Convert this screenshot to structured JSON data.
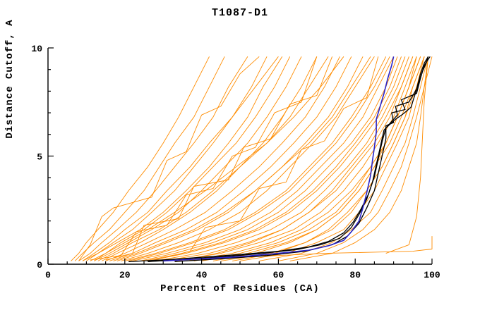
{
  "chart_data": {
    "type": "line",
    "title": "T1087-D1",
    "xlabel": "Percent of Residues (CA)",
    "ylabel": "Distance Cutoff, A",
    "xlim": [
      0,
      100
    ],
    "ylim": [
      0,
      10
    ],
    "x_major_ticks": [
      0,
      20,
      40,
      60,
      80,
      100
    ],
    "x_minor_step": 5,
    "y_major_ticks": [
      0,
      5,
      10
    ],
    "y_minor_step": 1,
    "grid": "off",
    "legend": "none",
    "colors": {
      "model_orange": "#ff8c00",
      "best_blue": "#2b24c8",
      "reference_black": "#000000"
    },
    "y_grid": [
      0.15,
      0.5,
      1.0,
      1.6,
      2.4,
      3.4,
      4.5,
      5.6,
      6.8,
      8.2,
      9.6
    ],
    "orange_curves_x": [
      [
        6,
        8,
        10,
        13,
        17,
        21,
        26,
        30,
        34,
        38,
        42
      ],
      [
        7,
        9,
        12,
        16,
        20,
        25,
        29,
        33,
        38,
        42,
        46
      ],
      [
        8,
        11,
        14,
        18,
        23,
        28,
        33,
        38,
        43,
        47,
        52
      ],
      [
        10,
        13,
        17,
        22,
        27,
        33,
        38,
        43,
        48,
        53,
        57
      ],
      [
        9,
        12,
        16,
        20,
        26,
        31,
        37,
        42,
        48,
        54,
        60
      ],
      [
        11,
        15,
        19,
        25,
        31,
        37,
        43,
        49,
        54,
        59,
        63
      ],
      [
        12,
        16,
        21,
        27,
        34,
        40,
        46,
        52,
        57,
        62,
        66
      ],
      [
        14,
        18,
        24,
        30,
        37,
        44,
        50,
        56,
        61,
        66,
        70
      ],
      [
        13,
        17,
        22,
        29,
        36,
        43,
        50,
        57,
        63,
        68,
        73
      ],
      [
        15,
        20,
        26,
        33,
        41,
        48,
        55,
        61,
        67,
        72,
        76
      ],
      [
        16,
        22,
        28,
        36,
        44,
        51,
        58,
        64,
        70,
        75,
        79
      ],
      [
        18,
        24,
        31,
        39,
        47,
        54,
        61,
        67,
        73,
        78,
        82
      ],
      [
        12,
        15,
        20,
        26,
        33,
        41,
        49,
        57,
        64,
        71,
        77
      ],
      [
        17,
        23,
        30,
        38,
        46,
        54,
        61,
        68,
        74,
        79,
        84
      ],
      [
        20,
        28,
        37,
        46,
        54,
        62,
        68,
        74,
        79,
        84,
        88
      ],
      [
        22,
        31,
        41,
        50,
        58,
        65,
        71,
        77,
        82,
        86,
        90
      ],
      [
        25,
        35,
        45,
        54,
        62,
        69,
        75,
        80,
        85,
        89,
        92
      ],
      [
        28,
        39,
        49,
        58,
        66,
        72,
        78,
        83,
        87,
        91,
        94
      ],
      [
        30,
        42,
        52,
        61,
        68,
        75,
        80,
        85,
        89,
        92,
        95
      ],
      [
        24,
        33,
        43,
        52,
        60,
        67,
        73,
        79,
        84,
        88,
        91
      ],
      [
        33,
        45,
        55,
        64,
        71,
        77,
        82,
        86,
        90,
        93,
        96
      ],
      [
        36,
        48,
        58,
        66,
        73,
        79,
        84,
        88,
        91,
        94,
        97
      ],
      [
        40,
        52,
        62,
        70,
        76,
        81,
        85,
        88,
        91,
        94,
        97
      ],
      [
        45,
        58,
        67,
        74,
        79,
        83,
        87,
        90,
        93,
        95,
        98
      ],
      [
        50,
        62,
        70,
        77,
        81,
        85,
        88,
        91,
        94,
        96,
        99
      ],
      [
        55,
        66,
        74,
        79,
        84,
        87,
        90,
        93,
        95,
        97,
        99
      ],
      [
        38,
        50,
        60,
        68,
        75,
        80,
        84,
        88,
        91,
        94,
        96
      ],
      [
        60,
        70,
        77,
        82,
        86,
        89,
        92,
        94,
        96,
        98,
        100
      ],
      [
        63,
        74,
        80,
        85,
        89,
        92,
        94,
        96,
        97,
        98,
        99
      ],
      [
        19,
        26,
        34,
        42,
        50,
        57,
        63,
        69,
        75,
        80,
        85
      ],
      [
        21,
        29,
        38,
        47,
        55,
        63,
        69,
        75,
        80,
        85,
        89
      ],
      [
        26,
        36,
        46,
        55,
        63,
        70,
        76,
        81,
        86,
        90,
        93
      ],
      [
        9,
        13,
        18,
        24,
        30,
        36,
        42,
        47,
        52,
        56,
        61
      ],
      [
        34,
        44,
        53,
        61,
        68,
        74,
        79,
        84,
        88,
        92,
        95
      ],
      [
        43,
        54,
        63,
        70,
        76,
        81,
        85,
        89,
        92,
        95,
        98
      ],
      [
        48,
        59,
        67,
        73,
        78,
        83,
        87,
        90,
        93,
        96,
        98
      ]
    ],
    "orange_curves_points": [
      [
        [
          8,
          0.15
        ],
        [
          11,
          0.9
        ],
        [
          14,
          2.2
        ],
        [
          17,
          2.6
        ],
        [
          27,
          3.1
        ],
        [
          31,
          4.8
        ],
        [
          36,
          5.2
        ],
        [
          40,
          6.9
        ],
        [
          45,
          7.3
        ],
        [
          50,
          8.8
        ],
        [
          55,
          9.6
        ]
      ],
      [
        [
          15,
          0.2
        ],
        [
          22,
          0.5
        ],
        [
          25,
          1.8
        ],
        [
          34,
          2.1
        ],
        [
          38,
          3.6
        ],
        [
          47,
          3.9
        ],
        [
          51,
          5.4
        ],
        [
          58,
          5.8
        ],
        [
          63,
          7.4
        ],
        [
          70,
          7.8
        ],
        [
          74,
          9.6
        ]
      ],
      [
        [
          28,
          0.2
        ],
        [
          37,
          0.6
        ],
        [
          41,
          1.7
        ],
        [
          50,
          2.0
        ],
        [
          55,
          3.5
        ],
        [
          62,
          3.8
        ],
        [
          66,
          5.3
        ],
        [
          72,
          5.7
        ],
        [
          77,
          7.2
        ],
        [
          83,
          7.7
        ],
        [
          86,
          9.6
        ]
      ],
      [
        [
          11,
          0.2
        ],
        [
          19,
          0.4
        ],
        [
          23,
          1.5
        ],
        [
          31,
          1.8
        ],
        [
          36,
          3.2
        ],
        [
          43,
          3.5
        ],
        [
          48,
          5.0
        ],
        [
          54,
          5.4
        ],
        [
          59,
          7.0
        ],
        [
          66,
          7.5
        ],
        [
          70,
          9.6
        ]
      ],
      [
        [
          46,
          0.3
        ],
        [
          60,
          0.4
        ],
        [
          72,
          0.5
        ],
        [
          84,
          0.55
        ],
        [
          95,
          0.6
        ],
        [
          100,
          0.7
        ],
        [
          100,
          1.3
        ]
      ],
      [
        [
          88,
          0.5
        ],
        [
          94,
          0.9
        ],
        [
          96,
          2.2
        ],
        [
          97,
          4.0
        ],
        [
          97.5,
          5.8
        ],
        [
          98,
          7.6
        ],
        [
          99,
          9.6
        ]
      ]
    ],
    "blue_curve": [
      [
        30,
        0.15
      ],
      [
        40,
        0.25
      ],
      [
        50,
        0.35
      ],
      [
        60,
        0.5
      ],
      [
        68,
        0.65
      ],
      [
        73,
        0.85
      ],
      [
        77,
        1.1
      ],
      [
        79,
        1.5
      ],
      [
        81,
        2.0
      ],
      [
        82,
        2.6
      ],
      [
        83,
        3.3
      ],
      [
        84,
        4.1
      ],
      [
        84.5,
        4.8
      ],
      [
        85,
        5.4
      ],
      [
        85.5,
        6.1
      ],
      [
        85.5,
        6.7
      ],
      [
        86.5,
        7.3
      ],
      [
        87.5,
        7.9
      ],
      [
        88.5,
        8.6
      ],
      [
        89.5,
        9.2
      ],
      [
        90,
        9.6
      ]
    ],
    "black_curves": [
      [
        [
          21,
          0.12
        ],
        [
          30,
          0.2
        ],
        [
          40,
          0.32
        ],
        [
          50,
          0.45
        ],
        [
          60,
          0.6
        ],
        [
          68,
          0.8
        ],
        [
          73,
          1.05
        ],
        [
          77,
          1.45
        ],
        [
          79.5,
          1.95
        ],
        [
          81.5,
          2.55
        ],
        [
          83.5,
          3.25
        ],
        [
          85,
          4.05
        ],
        [
          86,
          4.85
        ],
        [
          87,
          5.65
        ],
        [
          88,
          6.3
        ],
        [
          90.5,
          6.7
        ],
        [
          92.5,
          6.95
        ],
        [
          94.5,
          7.25
        ],
        [
          95.5,
          7.8
        ],
        [
          96.5,
          8.35
        ],
        [
          97.5,
          8.9
        ],
        [
          98.5,
          9.3
        ],
        [
          99,
          9.6
        ]
      ],
      [
        [
          33,
          0.12
        ],
        [
          45,
          0.25
        ],
        [
          57,
          0.4
        ],
        [
          67,
          0.6
        ],
        [
          74,
          0.9
        ],
        [
          78,
          1.3
        ],
        [
          81,
          1.9
        ],
        [
          83,
          2.6
        ],
        [
          85,
          3.4
        ],
        [
          86,
          4.2
        ],
        [
          87,
          5.0
        ],
        [
          88,
          5.8
        ],
        [
          88,
          6.4
        ],
        [
          90,
          6.55
        ],
        [
          89.5,
          7.0
        ],
        [
          93,
          7.15
        ],
        [
          92,
          7.6
        ],
        [
          96,
          7.9
        ],
        [
          97,
          8.6
        ],
        [
          98,
          9.2
        ],
        [
          99.5,
          9.6
        ]
      ],
      [
        [
          26,
          0.12
        ],
        [
          36,
          0.22
        ],
        [
          46,
          0.35
        ],
        [
          56,
          0.5
        ],
        [
          65,
          0.68
        ],
        [
          71,
          0.9
        ],
        [
          76,
          1.2
        ],
        [
          79,
          1.7
        ],
        [
          81,
          2.3
        ],
        [
          83,
          3.0
        ],
        [
          84.5,
          3.8
        ],
        [
          85.5,
          4.6
        ],
        [
          86.5,
          5.4
        ],
        [
          87.5,
          6.2
        ],
        [
          89,
          6.5
        ],
        [
          91,
          6.9
        ],
        [
          90.5,
          7.3
        ],
        [
          94,
          7.5
        ],
        [
          96,
          8.1
        ],
        [
          97,
          8.8
        ],
        [
          98,
          9.3
        ],
        [
          99,
          9.6
        ]
      ]
    ]
  }
}
